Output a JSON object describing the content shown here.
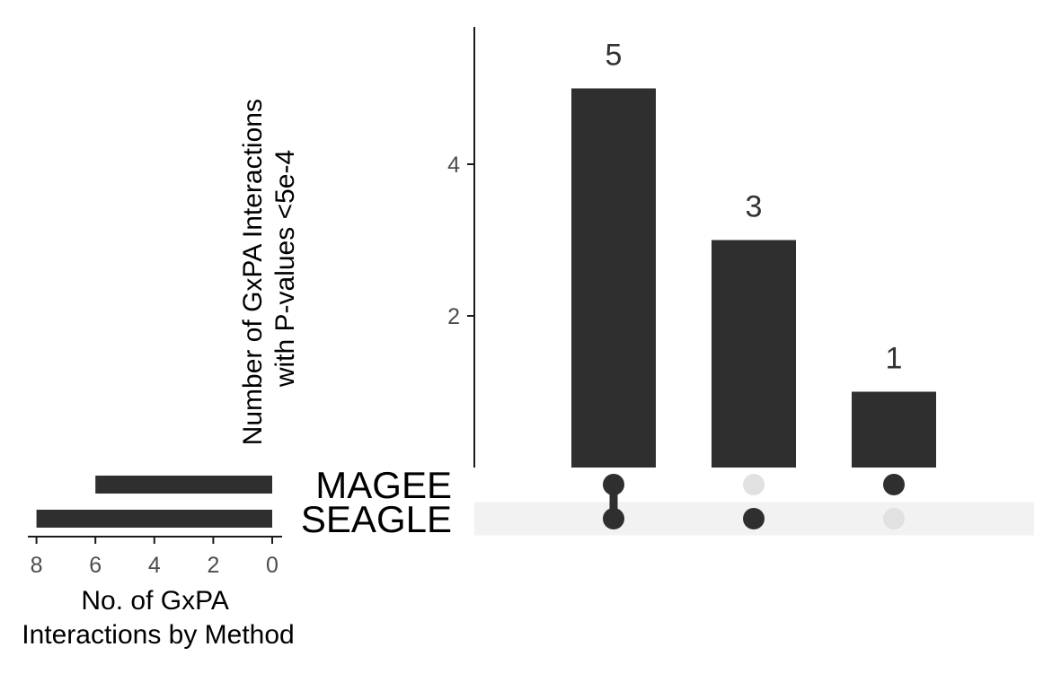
{
  "chart_data": {
    "type": "upset",
    "ylabel": "Number of GxPA Interactions with P-values <5e-4",
    "ylabel_lines": [
      "Number of GxPA Interactions",
      "with P-values <5e-4"
    ],
    "yticks": [
      2,
      4
    ],
    "ylim": [
      0,
      5.75
    ],
    "intersections": [
      {
        "value": 5,
        "label": "5",
        "sets": [
          "MAGEE",
          "SEAGLE"
        ]
      },
      {
        "value": 3,
        "label": "3",
        "sets": [
          "SEAGLE"
        ]
      },
      {
        "value": 1,
        "label": "1",
        "sets": [
          "MAGEE"
        ]
      }
    ],
    "sets": [
      {
        "name": "MAGEE",
        "size": 6
      },
      {
        "name": "SEAGLE",
        "size": 8
      }
    ],
    "set_size_xlabel": "No. of GxPA Interactions by Method",
    "set_size_xlabel_lines": [
      "No. of GxPA",
      "Interactions by Method"
    ],
    "set_size_xticks": [
      8,
      6,
      4,
      2,
      0
    ],
    "set_size_xlim": [
      0,
      8.3
    ],
    "colors": {
      "bar": "#2f2f2f",
      "dot_on": "#2f2f2f",
      "dot_off": "#e1e1e1",
      "stripe": "#f2f2f2",
      "axis": "#1a1a1a",
      "tick_text": "#4d4d4d"
    }
  }
}
